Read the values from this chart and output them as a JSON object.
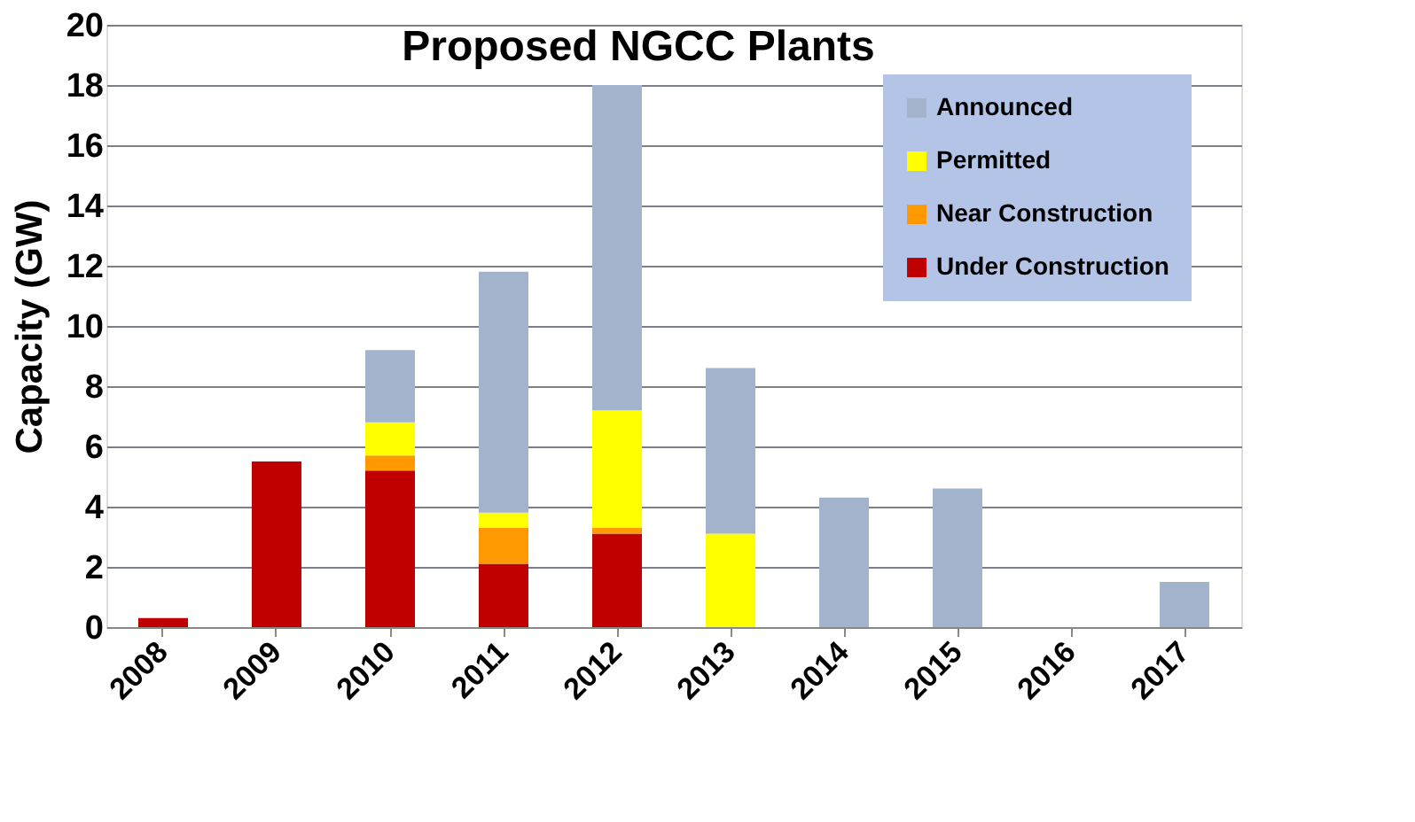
{
  "chart_data": {
    "type": "bar",
    "title": "Proposed NGCC Plants",
    "ylabel": "Capacity (GW)",
    "stacked": true,
    "categories": [
      "2008",
      "2009",
      "2010",
      "2011",
      "2012",
      "2013",
      "2014",
      "2015",
      "2016",
      "2017"
    ],
    "series": [
      {
        "name": "Under Construction",
        "color": "#c00000",
        "values": [
          0.3,
          5.5,
          5.2,
          2.1,
          3.1,
          0,
          0,
          0,
          0,
          0
        ]
      },
      {
        "name": "Near Construction",
        "color": "#ff9900",
        "values": [
          0,
          0,
          0.5,
          1.2,
          0.2,
          0,
          0,
          0,
          0,
          0
        ]
      },
      {
        "name": "Permitted",
        "color": "#ffff00",
        "values": [
          0,
          0,
          1.1,
          0.5,
          3.9,
          3.1,
          0,
          0,
          0,
          0
        ]
      },
      {
        "name": "Announced",
        "color": "#a4b3cc",
        "values": [
          0,
          0,
          2.4,
          8.0,
          10.8,
          5.5,
          4.3,
          4.6,
          0,
          1.5
        ]
      }
    ],
    "ylim": [
      0,
      20
    ],
    "yticks": [
      0,
      2,
      4,
      6,
      8,
      10,
      12,
      14,
      16,
      18,
      20
    ],
    "grid": "y",
    "legend": "top right"
  }
}
